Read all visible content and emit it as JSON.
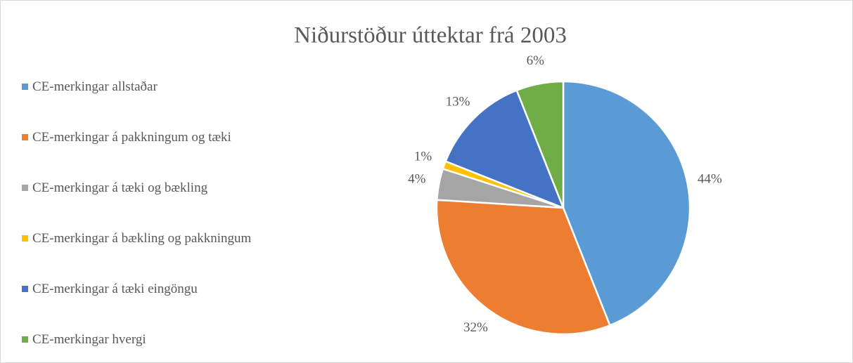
{
  "chart_data": {
    "type": "pie",
    "title": "Niðurstöður úttektar frá 2003",
    "categories": [
      "CE-merkingar allstaðar",
      "CE-merkingar á pakkningum og tæki",
      "CE-merkingar á tæki og bækling",
      "CE-merkingar á bækling og pakkningum",
      "CE-merkingar á tæki eingöngu",
      "CE-merkingar hvergi"
    ],
    "values": [
      44,
      32,
      4,
      1,
      13,
      6
    ],
    "value_labels": [
      "44%",
      "32%",
      "4%",
      "1%",
      "13%",
      "6%"
    ],
    "colors": [
      "#5b9bd5",
      "#ed7d31",
      "#a5a5a5",
      "#ffc000",
      "#4472c4",
      "#70ad47"
    ],
    "legend": "left"
  }
}
